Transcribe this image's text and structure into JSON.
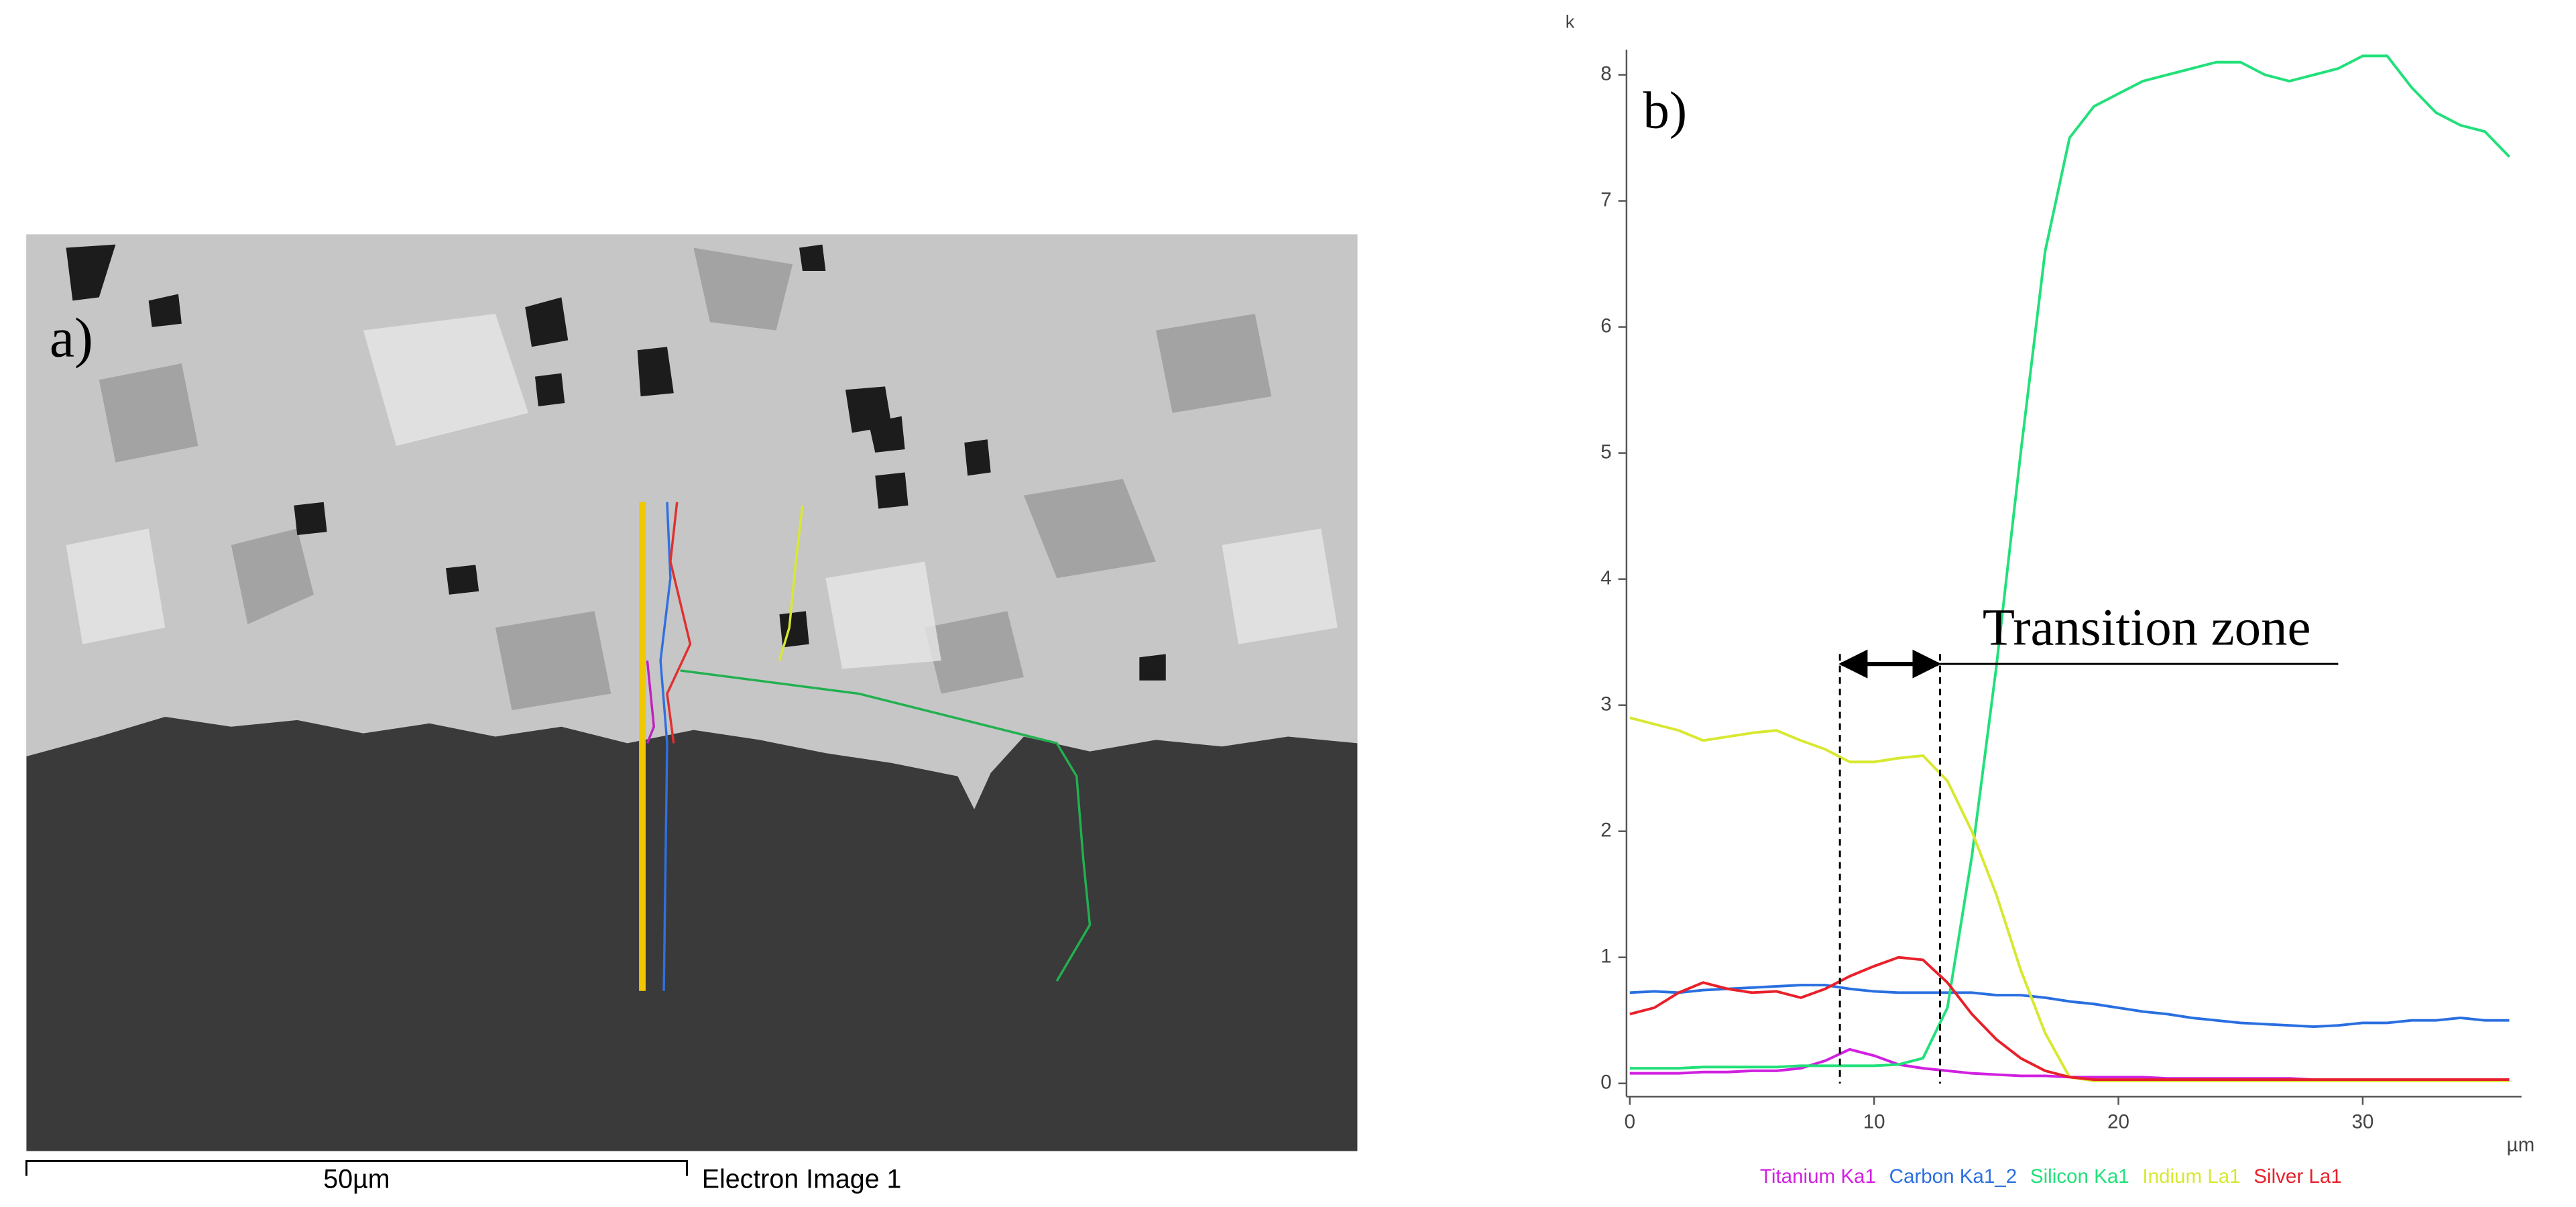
{
  "image": {
    "label": "a)",
    "scale_bar": "50µm",
    "caption": "Electron Image 1"
  },
  "chart_data": {
    "type": "line",
    "label": "b)",
    "y_label": "k",
    "x_label": "µm",
    "x": [
      0,
      1,
      2,
      3,
      4,
      5,
      6,
      7,
      8,
      9,
      10,
      11,
      12,
      13,
      14,
      15,
      16,
      17,
      18,
      19,
      20,
      21,
      22,
      23,
      24,
      25,
      26,
      27,
      28,
      29,
      30,
      31,
      32,
      33,
      34,
      35,
      36
    ],
    "xlim": [
      0,
      36.5
    ],
    "ylim": [
      0,
      8.2
    ],
    "xticks": [
      0,
      10,
      20,
      30
    ],
    "yticks": [
      0,
      1,
      2,
      3,
      4,
      5,
      6,
      7,
      8
    ],
    "series": [
      {
        "name": "Titanium Ka1",
        "color": "#d020e0",
        "values": [
          0.08,
          0.08,
          0.08,
          0.09,
          0.09,
          0.1,
          0.1,
          0.12,
          0.18,
          0.27,
          0.22,
          0.15,
          0.12,
          0.1,
          0.08,
          0.07,
          0.06,
          0.06,
          0.05,
          0.05,
          0.05,
          0.05,
          0.04,
          0.04,
          0.04,
          0.04,
          0.04,
          0.04,
          0.03,
          0.03,
          0.03,
          0.03,
          0.03,
          0.03,
          0.03,
          0.03,
          0.03
        ]
      },
      {
        "name": "Carbon Ka1_2",
        "color": "#2a6fe0",
        "values": [
          0.72,
          0.73,
          0.72,
          0.74,
          0.75,
          0.76,
          0.77,
          0.78,
          0.78,
          0.75,
          0.73,
          0.72,
          0.72,
          0.72,
          0.72,
          0.7,
          0.7,
          0.68,
          0.65,
          0.63,
          0.6,
          0.57,
          0.55,
          0.52,
          0.5,
          0.48,
          0.47,
          0.46,
          0.45,
          0.46,
          0.48,
          0.48,
          0.5,
          0.5,
          0.52,
          0.5,
          0.5
        ]
      },
      {
        "name": "Silicon Ka1",
        "color": "#22e07a",
        "values": [
          0.12,
          0.12,
          0.12,
          0.13,
          0.13,
          0.13,
          0.13,
          0.14,
          0.14,
          0.14,
          0.14,
          0.15,
          0.2,
          0.6,
          1.8,
          3.3,
          5.0,
          6.6,
          7.5,
          7.75,
          7.85,
          7.95,
          8.0,
          8.05,
          8.1,
          8.1,
          8.0,
          7.95,
          8.0,
          8.05,
          8.15,
          8.15,
          7.9,
          7.7,
          7.6,
          7.55,
          7.35
        ]
      },
      {
        "name": "Indium La1",
        "color": "#d8e830",
        "values": [
          2.9,
          2.85,
          2.8,
          2.72,
          2.75,
          2.78,
          2.8,
          2.72,
          2.65,
          2.55,
          2.55,
          2.58,
          2.6,
          2.4,
          2.0,
          1.5,
          0.9,
          0.4,
          0.05,
          0.02,
          0.02,
          0.02,
          0.02,
          0.02,
          0.02,
          0.02,
          0.02,
          0.02,
          0.02,
          0.02,
          0.02,
          0.02,
          0.02,
          0.02,
          0.02,
          0.02,
          0.02
        ]
      },
      {
        "name": "Silver La1",
        "color": "#e8202a",
        "values": [
          0.55,
          0.6,
          0.72,
          0.8,
          0.75,
          0.72,
          0.73,
          0.68,
          0.75,
          0.85,
          0.93,
          1.0,
          0.98,
          0.8,
          0.55,
          0.35,
          0.2,
          0.1,
          0.05,
          0.03,
          0.03,
          0.03,
          0.03,
          0.03,
          0.03,
          0.03,
          0.03,
          0.03,
          0.03,
          0.03,
          0.03,
          0.03,
          0.03,
          0.03,
          0.03,
          0.03,
          0.03
        ]
      }
    ],
    "annotation": {
      "text": "Transition zone",
      "x": [
        8.6,
        12.7
      ]
    }
  }
}
